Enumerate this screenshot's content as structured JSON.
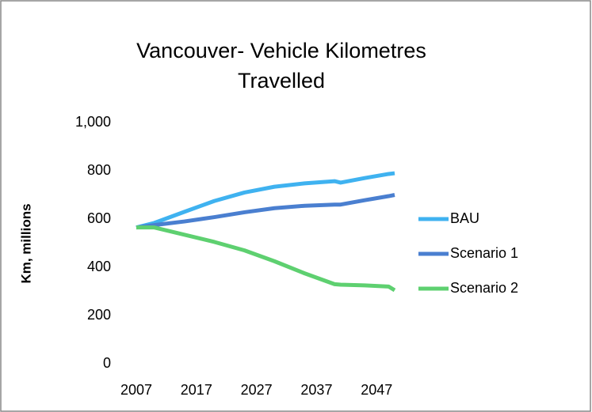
{
  "chart_data": {
    "type": "line",
    "title": "Vancouver- Vehicle Kilometres Travelled",
    "y_label": "Km, millions",
    "xlim": [
      2007,
      2050
    ],
    "xticks": [
      2007,
      2017,
      2027,
      2037,
      2047
    ],
    "ylim": [
      0,
      1000
    ],
    "yticks": [
      0,
      200,
      400,
      600,
      800,
      {
        "value": 1000,
        "label": "1,000"
      }
    ],
    "grid": false,
    "legend": "right",
    "x": [
      2007,
      2010,
      2015,
      2020,
      2025,
      2030,
      2035,
      2040,
      2041,
      2045,
      2049,
      2050
    ],
    "series": [
      {
        "name": "BAU",
        "color": "#3fb2f0",
        "values": [
          565,
          584,
          630,
          675,
          710,
          734,
          748,
          757,
          751,
          770,
          787,
          790
        ]
      },
      {
        "name": "Scenario 1",
        "color": "#4a7fd0",
        "values": [
          565,
          575,
          590,
          608,
          628,
          645,
          655,
          660,
          660,
          678,
          695,
          700
        ]
      },
      {
        "name": "Scenario 2",
        "color": "#5ed070",
        "values": [
          565,
          565,
          535,
          505,
          470,
          425,
          375,
          330,
          328,
          325,
          320,
          305
        ]
      }
    ]
  }
}
